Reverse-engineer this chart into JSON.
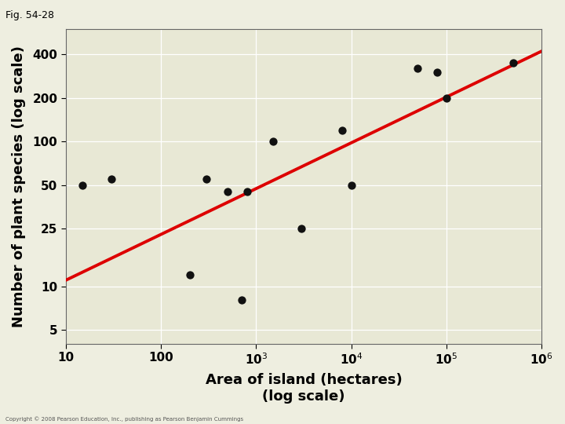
{
  "title": "Fig. 54-28",
  "xlabel_line1": "Area of island (hectares)",
  "xlabel_line2": "(log scale)",
  "ylabel": "Number of plant species (log scale)",
  "bg_color": "#eeeee0",
  "plot_bg_color": "#e8e8d5",
  "scatter_color": "#111111",
  "line_color": "#dd0000",
  "scatter_x": [
    15,
    30,
    200,
    300,
    500,
    700,
    800,
    1500,
    3000,
    8000,
    10000,
    50000,
    80000,
    100000,
    500000
  ],
  "scatter_y": [
    50,
    55,
    12,
    55,
    45,
    8,
    45,
    100,
    25,
    120,
    50,
    320,
    300,
    200,
    350
  ],
  "line_x_start": 10,
  "line_x_end": 1000000,
  "line_y_start": 11,
  "line_y_end": 420,
  "xlim": [
    10,
    1000000
  ],
  "ylim": [
    4,
    600
  ],
  "xticks": [
    10,
    100,
    1000,
    10000,
    100000,
    1000000
  ],
  "yticks": [
    5,
    10,
    25,
    50,
    100,
    200,
    400
  ],
  "copyright": "Copyright © 2008 Pearson Education, Inc., publishing as Pearson Benjamin Cummings",
  "figsize": [
    7.2,
    5.4
  ],
  "dpi": 100,
  "scatter_size": 55,
  "title_fontsize": 9,
  "label_fontsize": 13,
  "tick_fontsize": 11
}
